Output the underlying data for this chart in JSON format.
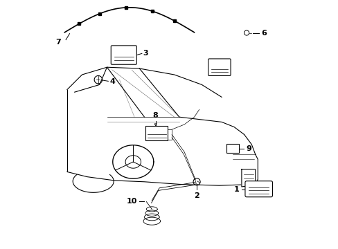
{
  "bg_color": "#ffffff",
  "fg_color": "#000000",
  "fig_width": 4.89,
  "fig_height": 3.6,
  "dpi": 100
}
